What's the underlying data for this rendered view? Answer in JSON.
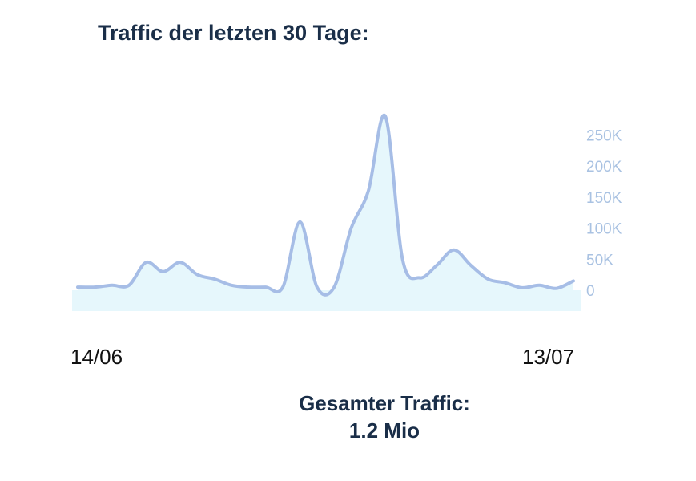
{
  "title": "Traffic der letzten 30 Tage:",
  "x_start_label": "14/06",
  "x_end_label": "13/07",
  "total": {
    "label": "Gesamter Traffic:",
    "value": "1.2 Mio"
  },
  "colors": {
    "line": "#a6bde6",
    "fill": "#e6f7fc",
    "axis_text": "#a9c2e2",
    "heading": "#1a2e48"
  },
  "chart_data": {
    "type": "area",
    "title": "Traffic der letzten 30 Tage:",
    "xlabel": "",
    "ylabel": "",
    "x": [
      "14/06",
      "15/06",
      "16/06",
      "17/06",
      "18/06",
      "19/06",
      "20/06",
      "21/06",
      "22/06",
      "23/06",
      "24/06",
      "25/06",
      "26/06",
      "27/06",
      "28/06",
      "29/06",
      "30/06",
      "01/07",
      "02/07",
      "03/07",
      "04/07",
      "05/07",
      "06/07",
      "07/07",
      "08/07",
      "09/07",
      "10/07",
      "11/07",
      "12/07",
      "13/07"
    ],
    "x_tick_labels": [
      "14/06",
      "13/07"
    ],
    "values": [
      5000,
      5000,
      8000,
      8000,
      45000,
      30000,
      45000,
      25000,
      18000,
      8000,
      5000,
      5000,
      5000,
      110000,
      5000,
      5000,
      100000,
      160000,
      280000,
      50000,
      20000,
      40000,
      65000,
      40000,
      18000,
      12000,
      4000,
      8000,
      3000,
      15000
    ],
    "y_ticks": [
      0,
      50000,
      100000,
      150000,
      200000,
      250000
    ],
    "y_tick_labels": [
      "0",
      "50K",
      "100K",
      "150K",
      "200K",
      "250K"
    ],
    "ylim": [
      0,
      290000
    ],
    "y_axis_position": "right",
    "grid": false,
    "legend": "none"
  }
}
